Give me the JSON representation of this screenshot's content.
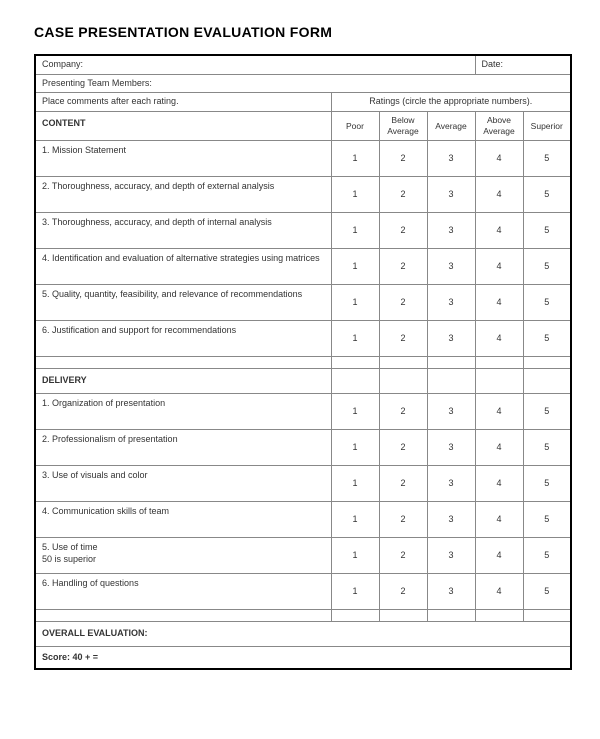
{
  "title": "CASE PRESENTATION EVALUATION FORM",
  "header": {
    "company_label": "Company:",
    "date_label": "Date:",
    "team_label": "Presenting Team Members:",
    "comments_label": "Place comments after each rating.",
    "ratings_label": "Ratings (circle the appropriate numbers)."
  },
  "columns": {
    "poor": "Poor",
    "below": "Below\nAverage",
    "average": "Average",
    "above": "Above\nAverage",
    "superior": "Superior"
  },
  "sections": [
    {
      "heading": "CONTENT",
      "items": [
        {
          "label": "1. Mission Statement",
          "ratings": [
            "1",
            "2",
            "3",
            "4",
            "5"
          ]
        },
        {
          "label": "2. Thoroughness, accuracy, and depth of external analysis",
          "ratings": [
            "1",
            "2",
            "3",
            "4",
            "5"
          ]
        },
        {
          "label": "3. Thoroughness, accuracy, and depth of internal analysis",
          "ratings": [
            "1",
            "2",
            "3",
            "4",
            "5"
          ]
        },
        {
          "label": "4. Identification and evaluation of alternative strategies using matrices",
          "ratings": [
            "1",
            "2",
            "3",
            "4",
            "5"
          ]
        },
        {
          "label": "5. Quality, quantity, feasibility, and relevance of recommendations",
          "ratings": [
            "1",
            "2",
            "3",
            "4",
            "5"
          ]
        },
        {
          "label": "6. Justification and support for recommendations",
          "ratings": [
            "1",
            "2",
            "3",
            "4",
            "5"
          ]
        }
      ]
    },
    {
      "heading": "DELIVERY",
      "items": [
        {
          "label": "1. Organization of presentation",
          "ratings": [
            "1",
            "2",
            "3",
            "4",
            "5"
          ]
        },
        {
          "label": "2. Professionalism of presentation",
          "ratings": [
            "1",
            "2",
            "3",
            "4",
            "5"
          ]
        },
        {
          "label": "3. Use of visuals and color",
          "ratings": [
            "1",
            "2",
            "3",
            "4",
            "5"
          ]
        },
        {
          "label": "4. Communication skills of team",
          "ratings": [
            "1",
            "2",
            "3",
            "4",
            "5"
          ]
        },
        {
          "label": "5. Use of time\n50 is superior",
          "ratings": [
            "1",
            "2",
            "3",
            "4",
            "5"
          ]
        },
        {
          "label": "6. Handling of questions",
          "ratings": [
            "1",
            "2",
            "3",
            "4",
            "5"
          ]
        }
      ]
    }
  ],
  "overall_label": "OVERALL EVALUATION:",
  "score_label": "Score:  40  +  ="
}
